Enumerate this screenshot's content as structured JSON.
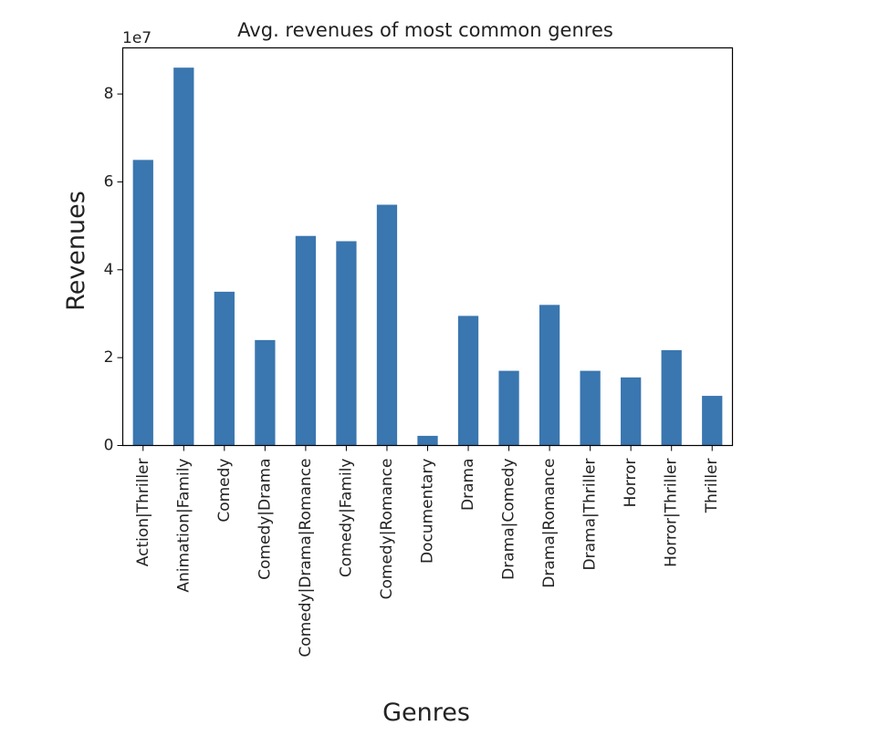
{
  "chart_data": {
    "type": "bar",
    "title": "Avg. revenues of most common genres",
    "xlabel": "Genres",
    "ylabel": "Revenues",
    "y_offset_label": "1e7",
    "ylim": [
      0,
      9.05
    ],
    "yticks": [
      0,
      2,
      4,
      6,
      8
    ],
    "grid": false,
    "bar_color": "#3a76af",
    "categories": [
      "Action|Thriller",
      "Animation|Family",
      "Comedy",
      "Comedy|Drama",
      "Comedy|Drama|Romance",
      "Comedy|Family",
      "Comedy|Romance",
      "Documentary",
      "Drama",
      "Drama|Comedy",
      "Drama|Romance",
      "Drama|Thriller",
      "Horror",
      "Horror|Thriller",
      "Thriller"
    ],
    "values": [
      6.5,
      8.6,
      3.5,
      2.4,
      4.77,
      4.65,
      5.48,
      0.22,
      2.95,
      1.7,
      3.2,
      1.7,
      1.55,
      2.17,
      1.13
    ]
  }
}
